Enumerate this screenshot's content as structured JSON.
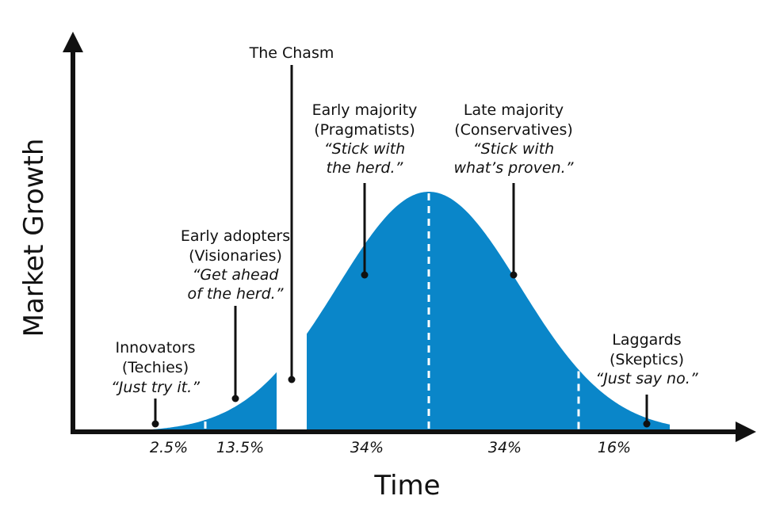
{
  "colors": {
    "curve": "#0a86c9",
    "ink": "#111111",
    "divider": "#ffffff"
  },
  "axes": {
    "x_label": "Time",
    "y_label": "Market Growth"
  },
  "chasm": {
    "label": "The Chasm"
  },
  "segments": [
    {
      "id": "innovators",
      "name": "Innovators",
      "persona": "(Techies)",
      "quote": "“Just try it.”",
      "share": "2.5%"
    },
    {
      "id": "early-adopters",
      "name": "Early adopters",
      "persona": "(Visionaries)",
      "quote_1": "“Get ahead",
      "quote_2": "of the herd.”",
      "share": "13.5%"
    },
    {
      "id": "early-majority",
      "name": "Early majority",
      "persona": "(Pragmatists)",
      "quote_1": "“Stick with",
      "quote_2": "the herd.”",
      "share": "34%"
    },
    {
      "id": "late-majority",
      "name": "Late majority",
      "persona": "(Conservatives)",
      "quote_1": "“Stick with",
      "quote_2": "what’s proven.”",
      "share": "34%"
    },
    {
      "id": "laggards",
      "name": "Laggards",
      "persona": "(Skeptics)",
      "quote": "“Just say no.”",
      "share": "16%"
    }
  ]
}
